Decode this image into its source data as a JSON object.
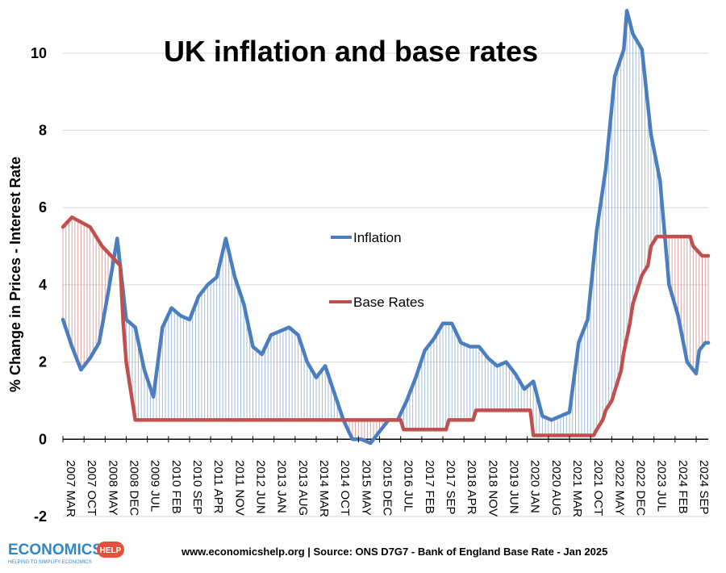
{
  "chart_data": {
    "type": "line",
    "title": "UK inflation and base rates",
    "ylabel": "% Change in Prices - Interest  Rate",
    "xlabel": "",
    "ylim": [
      -2,
      11
    ],
    "yticks": [
      -2,
      0,
      2,
      4,
      6,
      8,
      10
    ],
    "grid": true,
    "legend_placement": "center",
    "x_start": "2007 MAR",
    "x_end": "2025 JAN",
    "x_tick_labels": [
      "2007 MAR",
      "2007 OCT",
      "2008 MAY",
      "2008 DEC",
      "2009 JUL",
      "2010 FEB",
      "2010 SEP",
      "2011 APR",
      "2011 NOV",
      "2012 JUN",
      "2013 JAN",
      "2013 AUG",
      "2014 MAR",
      "2014 OCT",
      "2015 MAY",
      "2015 DEC",
      "2016 JUL",
      "2017 FEB",
      "2017 SEP",
      "2018 APR",
      "2018 NOV",
      "2019 JUN",
      "2020 JAN",
      "2020 AUG",
      "2021 MAR",
      "2021 OCT",
      "2022 MAY",
      "2022 DEC",
      "2023 JUL",
      "2024 FEB",
      "2024 SEP"
    ],
    "series": [
      {
        "name": "Inflation",
        "color": "#4a7ebf",
        "points": [
          [
            "2007 MAR",
            3.1
          ],
          [
            "2007 JUN",
            2.4
          ],
          [
            "2007 SEP",
            1.8
          ],
          [
            "2007 DEC",
            2.1
          ],
          [
            "2008 MAR",
            2.5
          ],
          [
            "2008 JUN",
            3.8
          ],
          [
            "2008 SEP",
            5.2
          ],
          [
            "2008 DEC",
            3.1
          ],
          [
            "2009 MAR",
            2.9
          ],
          [
            "2009 JUN",
            1.8
          ],
          [
            "2009 SEP",
            1.1
          ],
          [
            "2009 DEC",
            2.9
          ],
          [
            "2010 MAR",
            3.4
          ],
          [
            "2010 JUN",
            3.2
          ],
          [
            "2010 SEP",
            3.1
          ],
          [
            "2010 DEC",
            3.7
          ],
          [
            "2011 MAR",
            4.0
          ],
          [
            "2011 JUN",
            4.2
          ],
          [
            "2011 SEP",
            5.2
          ],
          [
            "2011 DEC",
            4.2
          ],
          [
            "2012 MAR",
            3.5
          ],
          [
            "2012 JUN",
            2.4
          ],
          [
            "2012 SEP",
            2.2
          ],
          [
            "2012 DEC",
            2.7
          ],
          [
            "2013 MAR",
            2.8
          ],
          [
            "2013 JUN",
            2.9
          ],
          [
            "2013 SEP",
            2.7
          ],
          [
            "2013 DEC",
            2.0
          ],
          [
            "2014 MAR",
            1.6
          ],
          [
            "2014 JUN",
            1.9
          ],
          [
            "2014 SEP",
            1.2
          ],
          [
            "2014 DEC",
            0.5
          ],
          [
            "2015 MAR",
            0.0
          ],
          [
            "2015 JUN",
            0.0
          ],
          [
            "2015 SEP",
            -0.1
          ],
          [
            "2015 DEC",
            0.2
          ],
          [
            "2016 MAR",
            0.5
          ],
          [
            "2016 JUN",
            0.5
          ],
          [
            "2016 SEP",
            1.0
          ],
          [
            "2016 DEC",
            1.6
          ],
          [
            "2017 MAR",
            2.3
          ],
          [
            "2017 JUN",
            2.6
          ],
          [
            "2017 SEP",
            3.0
          ],
          [
            "2017 DEC",
            3.0
          ],
          [
            "2018 MAR",
            2.5
          ],
          [
            "2018 JUN",
            2.4
          ],
          [
            "2018 SEP",
            2.4
          ],
          [
            "2018 DEC",
            2.1
          ],
          [
            "2019 MAR",
            1.9
          ],
          [
            "2019 JUN",
            2.0
          ],
          [
            "2019 SEP",
            1.7
          ],
          [
            "2019 DEC",
            1.3
          ],
          [
            "2020 MAR",
            1.5
          ],
          [
            "2020 JUN",
            0.6
          ],
          [
            "2020 SEP",
            0.5
          ],
          [
            "2020 DEC",
            0.6
          ],
          [
            "2021 MAR",
            0.7
          ],
          [
            "2021 JUN",
            2.5
          ],
          [
            "2021 SEP",
            3.1
          ],
          [
            "2021 DEC",
            5.4
          ],
          [
            "2022 MAR",
            7.0
          ],
          [
            "2022 JUN",
            9.4
          ],
          [
            "2022 SEP",
            10.1
          ],
          [
            "2022 OCT",
            11.1
          ],
          [
            "2022 DEC",
            10.5
          ],
          [
            "2023 MAR",
            10.1
          ],
          [
            "2023 JUN",
            7.9
          ],
          [
            "2023 SEP",
            6.7
          ],
          [
            "2023 DEC",
            4.0
          ],
          [
            "2024 MAR",
            3.2
          ],
          [
            "2024 JUN",
            2.0
          ],
          [
            "2024 SEP",
            1.7
          ],
          [
            "2024 OCT",
            2.3
          ],
          [
            "2024 DEC",
            2.5
          ],
          [
            "2025 JAN",
            2.5
          ]
        ]
      },
      {
        "name": "Base Rates",
        "color": "#c0504d",
        "points": [
          [
            "2007 MAR",
            5.5
          ],
          [
            "2007 JUN",
            5.75
          ],
          [
            "2007 DEC",
            5.5
          ],
          [
            "2008 FEB",
            5.25
          ],
          [
            "2008 APR",
            5.0
          ],
          [
            "2008 OCT",
            4.5
          ],
          [
            "2008 NOV",
            3.0
          ],
          [
            "2008 DEC",
            2.0
          ],
          [
            "2009 JAN",
            1.5
          ],
          [
            "2009 FEB",
            1.0
          ],
          [
            "2009 MAR",
            0.5
          ],
          [
            "2016 JUL",
            0.5
          ],
          [
            "2016 AUG",
            0.25
          ],
          [
            "2017 OCT",
            0.25
          ],
          [
            "2017 NOV",
            0.5
          ],
          [
            "2018 JUL",
            0.5
          ],
          [
            "2018 AUG",
            0.75
          ],
          [
            "2020 FEB",
            0.75
          ],
          [
            "2020 MAR",
            0.1
          ],
          [
            "2021 NOV",
            0.1
          ],
          [
            "2021 DEC",
            0.25
          ],
          [
            "2022 FEB",
            0.5
          ],
          [
            "2022 MAR",
            0.75
          ],
          [
            "2022 MAY",
            1.0
          ],
          [
            "2022 JUN",
            1.25
          ],
          [
            "2022 AUG",
            1.75
          ],
          [
            "2022 SEP",
            2.25
          ],
          [
            "2022 NOV",
            3.0
          ],
          [
            "2022 DEC",
            3.5
          ],
          [
            "2023 FEB",
            4.0
          ],
          [
            "2023 MAR",
            4.25
          ],
          [
            "2023 MAY",
            4.5
          ],
          [
            "2023 JUN",
            5.0
          ],
          [
            "2023 AUG",
            5.25
          ],
          [
            "2024 JUL",
            5.25
          ],
          [
            "2024 AUG",
            5.0
          ],
          [
            "2024 NOV",
            4.75
          ],
          [
            "2025 JAN",
            4.75
          ]
        ]
      }
    ]
  },
  "source_text": "www.economicshelp.org | Source: ONS D7G7 - Bank of England Base Rate - Jan 2025",
  "logo": {
    "main": "ECONOMICS",
    "badge": "HELP",
    "tagline": "HELPING TO SIMPLIFY ECONOMICS"
  }
}
